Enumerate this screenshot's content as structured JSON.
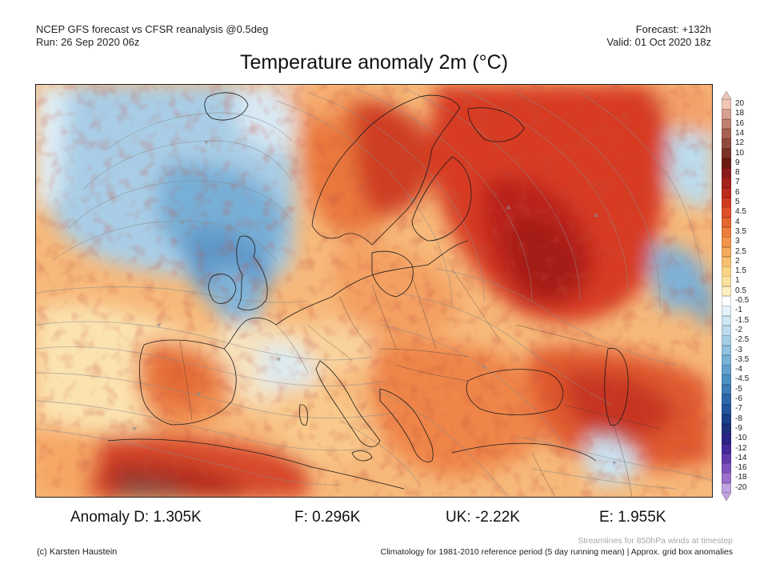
{
  "header": {
    "model_line": "NCEP GFS forecast vs CFSR reanalysis @0.5deg",
    "run_line": "Run: 26 Sep 2020 06z",
    "forecast_line": "Forecast: +132h",
    "valid_line": "Valid: 01 Oct 2020 18z"
  },
  "title": "Temperature anomaly 2m (°C)",
  "colorbar": {
    "labels": [
      "20",
      "18",
      "16",
      "14",
      "12",
      "10",
      "9",
      "8",
      "7",
      "6",
      "5",
      "4.5",
      "4",
      "3.5",
      "3",
      "2.5",
      "2",
      "1.5",
      "1",
      "0.5",
      "-0.5",
      "-1",
      "-1.5",
      "-2",
      "-2.5",
      "-3",
      "-3.5",
      "-4",
      "-4.5",
      "-5",
      "-6",
      "-7",
      "-8",
      "-9",
      "-10",
      "-12",
      "-14",
      "-16",
      "-18",
      "-20"
    ],
    "colors": [
      "#f0c6b6",
      "#d8a090",
      "#c08070",
      "#a86050",
      "#904a3c",
      "#7a3324",
      "#6b1a10",
      "#8c1b1b",
      "#a52219",
      "#be2a1d",
      "#d23a22",
      "#e04e2a",
      "#e8652f",
      "#ee7d3a",
      "#f39449",
      "#f6ab5c",
      "#f8c070",
      "#f9d386",
      "#fae29e",
      "#fbefc0",
      "#ffffff",
      "#e3f1f8",
      "#cfe6f3",
      "#bcdcee",
      "#a6cfe7",
      "#90c1df",
      "#79b1d6",
      "#63a0cc",
      "#4e8fc2",
      "#3c7cb7",
      "#2e68aa",
      "#22549b",
      "#1a3f8a",
      "#1c2f7a",
      "#2b2487",
      "#452a9c",
      "#6039ad",
      "#7d52bd",
      "#9c70cc",
      "#c1a2e0"
    ]
  },
  "anomalies": [
    {
      "label": "Anomaly D: 1.305K"
    },
    {
      "label": "F: 0.296K"
    },
    {
      "label": "UK: -2.22K"
    },
    {
      "label": "E: 1.955K"
    }
  ],
  "footer": {
    "credit": "(c) Karsten Haustein",
    "streamline_note": "Streamlines for 850hPa winds at timestep",
    "climatology_note": "Climatology for 1981-2010 reference period (5 day running mean) | Approx. grid box anomalies"
  }
}
